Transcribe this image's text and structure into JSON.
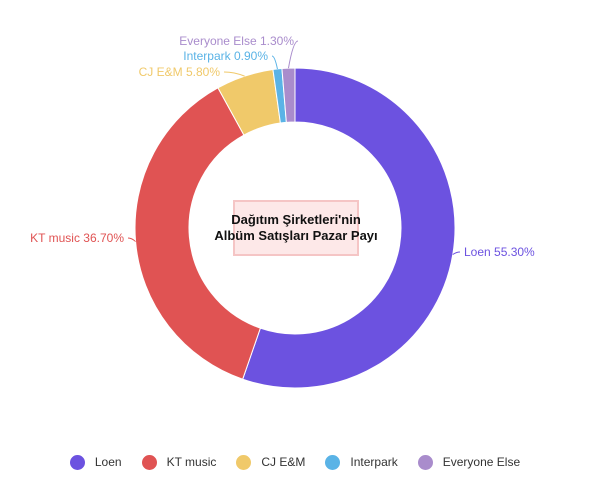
{
  "chart_data": {
    "type": "pie",
    "title": "Dağıtım Şirketleri'nin Albüm Satışları Pazar Payı",
    "title_lines": [
      "Dağıtım Şirketleri'nin",
      "Albüm Satışları Pazar Payı"
    ],
    "donut": true,
    "categories": [
      "Loen",
      "KT music",
      "CJ E&M",
      "Interpark",
      "Everyone Else"
    ],
    "values": [
      55.3,
      36.7,
      5.8,
      0.9,
      1.3
    ],
    "slice_labels": [
      "Loen 55.30%",
      "KT music 36.70%",
      "CJ E&M 5.80%",
      "Interpark 0.90%",
      "Everyone Else 1.30%"
    ],
    "colors": [
      "#6c52e0",
      "#e05353",
      "#f0c96a",
      "#5ab3e6",
      "#a98ccc"
    ],
    "legend_position": "bottom"
  }
}
